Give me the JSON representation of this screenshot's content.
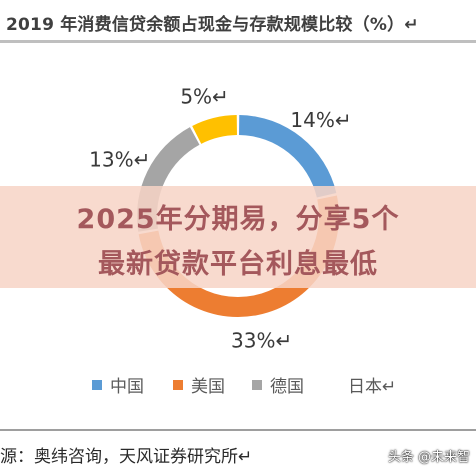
{
  "title": "2019 年消费信贷余额占现金与存款规模比较（%）↵",
  "headline": {
    "line1": "2025年分期易，分享5个",
    "line2": "最新贷款平台利息最低"
  },
  "chart_data": {
    "type": "pie",
    "title": "2019 年消费信贷余额占现金与存款规模比较（%）",
    "categories": [
      "中国",
      "美国",
      "德国",
      "日本"
    ],
    "values": [
      14,
      33,
      13,
      5
    ],
    "data_labels": [
      "14%↵",
      "33%↵",
      "13%↵",
      "5%↵"
    ],
    "colors": [
      "#5b9bd5",
      "#ed7d31",
      "#a5a5a5",
      "#ffc000"
    ],
    "legend_position": "bottom",
    "donut": true
  },
  "legend": {
    "items": [
      {
        "label": "中国",
        "color": "#5b9bd5"
      },
      {
        "label": "美国",
        "color": "#ed7d31"
      },
      {
        "label": "德国",
        "color": "#a5a5a5"
      },
      {
        "label": "日本↵",
        "color": "#ffc000"
      }
    ]
  },
  "source": "源：奥纬咨询，天风证券研究所↵",
  "watermark": "头条 @未来智"
}
